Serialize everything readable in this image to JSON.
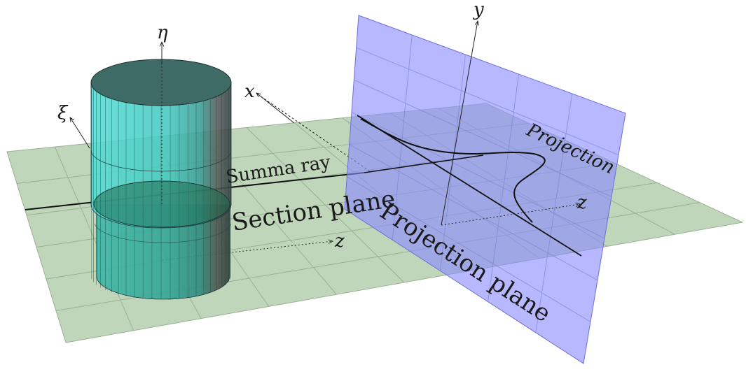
{
  "diagram": {
    "labels": {
      "eta": "η",
      "xi": "ξ",
      "x": "x",
      "y": "y",
      "z_section": "z",
      "z_projection": "z",
      "summa_ray": "Summa ray",
      "section_plane": "Section plane",
      "projection_plane": "Projection plane",
      "projection": "Projection"
    },
    "colors": {
      "section_plane": "#b5cfae",
      "projection_plane": "#8a8cff",
      "cylinder_side": "#4fd3cc",
      "cylinder_top": "#3f6b66",
      "grid": "#8fa88a",
      "ink": "#111111"
    }
  }
}
